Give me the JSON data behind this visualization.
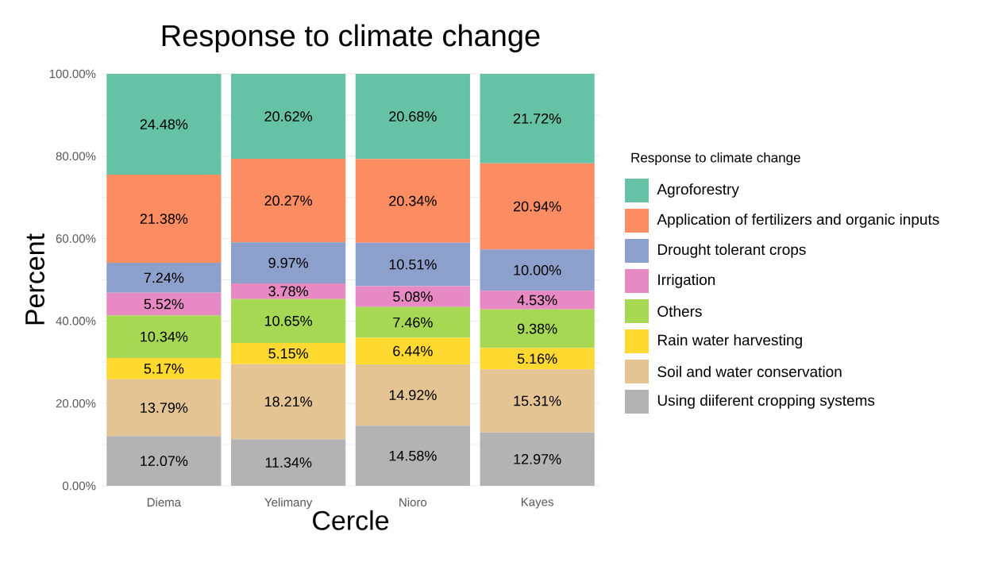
{
  "chart_data": {
    "type": "bar",
    "stacked": true,
    "title": "Response to climate change",
    "xlabel": "Cercle",
    "ylabel": "Percent",
    "legend_title": "Response to climate change",
    "legend": "right",
    "grid": "y",
    "categories": [
      "Diema",
      "Yelimany",
      "Nioro",
      "Kayes"
    ],
    "ylim": [
      0,
      100
    ],
    "yticks": [
      {
        "value": 0,
        "label": "0.00%"
      },
      {
        "value": 10,
        "label": null
      },
      {
        "value": 20,
        "label": "20.00%"
      },
      {
        "value": 30,
        "label": null
      },
      {
        "value": 40,
        "label": "40.00%"
      },
      {
        "value": 50,
        "label": null
      },
      {
        "value": 60,
        "label": "60.00%"
      },
      {
        "value": 70,
        "label": null
      },
      {
        "value": 80,
        "label": "80.00%"
      },
      {
        "value": 90,
        "label": null
      },
      {
        "value": 100,
        "label": "100.00%"
      }
    ],
    "series": [
      {
        "name": "Using diiferent cropping systems",
        "color": "#b3b3b3",
        "values": [
          12.07,
          11.34,
          14.58,
          12.97
        ],
        "value_labels": [
          "12.07%",
          "11.34%",
          "14.58%",
          "12.97%"
        ]
      },
      {
        "name": "Soil and water conservation",
        "color": "#e5c494",
        "values": [
          13.79,
          18.21,
          14.92,
          15.31
        ],
        "value_labels": [
          "13.79%",
          "18.21%",
          "14.92%",
          "15.31%"
        ]
      },
      {
        "name": "Rain water harvesting",
        "color": "#ffd92f",
        "values": [
          5.17,
          5.15,
          6.44,
          5.16
        ],
        "value_labels": [
          "5.17%",
          "5.15%",
          "6.44%",
          "5.16%"
        ]
      },
      {
        "name": "Others",
        "color": "#a6d854",
        "values": [
          10.34,
          10.65,
          7.46,
          9.38
        ],
        "value_labels": [
          "10.34%",
          "10.65%",
          "7.46%",
          "9.38%"
        ]
      },
      {
        "name": "Irrigation",
        "color": "#e78ac3",
        "values": [
          5.52,
          3.78,
          5.08,
          4.53
        ],
        "value_labels": [
          "5.52%",
          "3.78%",
          "5.08%",
          "4.53%"
        ]
      },
      {
        "name": "Drought tolerant crops",
        "color": "#8da0cb",
        "values": [
          7.24,
          9.97,
          10.51,
          10.0
        ],
        "value_labels": [
          "7.24%",
          "9.97%",
          "10.51%",
          "10.00%"
        ]
      },
      {
        "name": "Application of fertilizers and organic inputs",
        "color": "#fc8d62",
        "values": [
          21.38,
          20.27,
          20.34,
          20.94
        ],
        "value_labels": [
          "21.38%",
          "20.27%",
          "20.34%",
          "20.94%"
        ]
      },
      {
        "name": "Agroforestry",
        "color": "#66c2a5",
        "values": [
          24.48,
          20.62,
          20.68,
          21.72
        ],
        "value_labels": [
          "24.48%",
          "20.62%",
          "20.68%",
          "21.72%"
        ]
      }
    ]
  }
}
